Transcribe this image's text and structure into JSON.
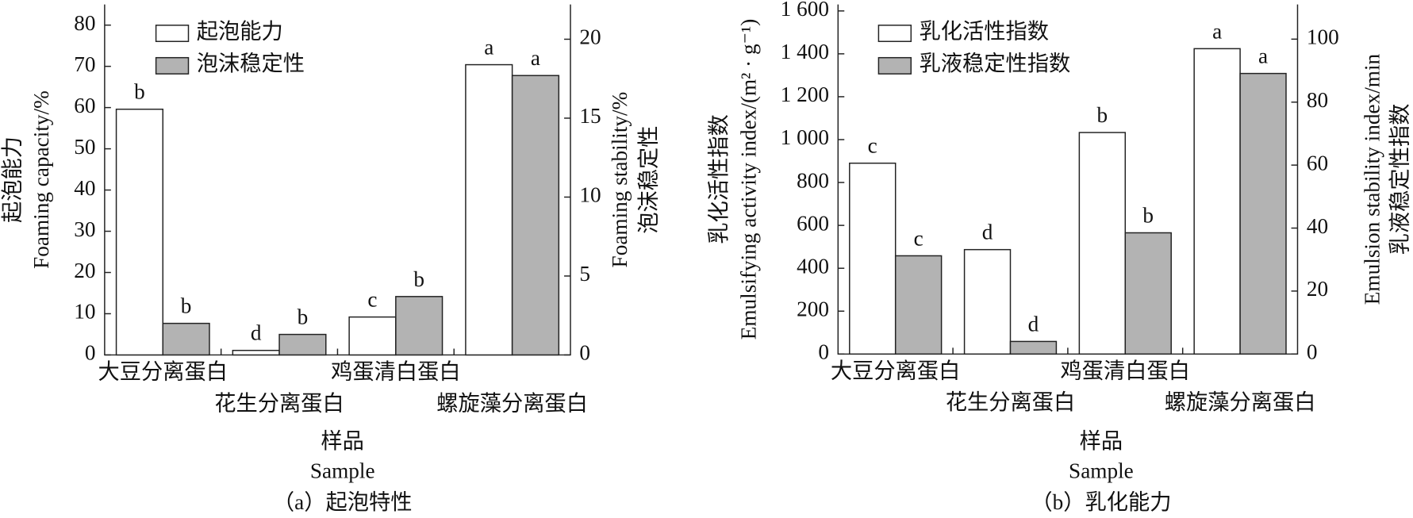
{
  "chart_data": [
    {
      "type": "bar",
      "caption": "（a）起泡特性",
      "xlabel": "样品",
      "xlabel_en": "Sample",
      "ylabel": [
        "起泡能力",
        "Foaming capacity/%"
      ],
      "y2label": [
        "Foaming stability/%",
        "泡沫稳定性"
      ],
      "categories": [
        "大豆分离蛋白",
        "花生分离蛋白",
        "鸡蛋清白蛋白",
        "螺旋藻分离蛋白"
      ],
      "series": [
        {
          "name": "起泡能力",
          "color": "#ffffff",
          "axis": "y",
          "values": [
            59.6,
            1.1,
            9.2,
            70.4
          ],
          "significance": [
            "b",
            "d",
            "c",
            "a"
          ]
        },
        {
          "name": "泡沫稳定性",
          "color": "#b3b3b3",
          "axis": "y2",
          "values": [
            2.0,
            1.3,
            3.7,
            17.7
          ],
          "significance": [
            "b",
            "b",
            "b",
            "a"
          ]
        }
      ],
      "ylim": [
        0,
        85
      ],
      "yticks": [
        0,
        10,
        20,
        30,
        40,
        50,
        60,
        70,
        80
      ],
      "y2lim": [
        0,
        22.2
      ],
      "y2ticks": [
        0,
        5,
        10,
        15,
        20
      ],
      "legend": "upper left"
    },
    {
      "type": "bar",
      "caption": "（b）乳化能力",
      "xlabel": "样品",
      "xlabel_en": "Sample",
      "ylabel": [
        "乳化活性指数",
        "Emulsifying activity index/(m² · g⁻¹)"
      ],
      "y2label": [
        "Emulsion stability index/min",
        "乳液稳定性指数"
      ],
      "categories": [
        "大豆分离蛋白",
        "花生分离蛋白",
        "鸡蛋清白蛋白",
        "螺旋藻分离蛋白"
      ],
      "series": [
        {
          "name": "乳化活性指数",
          "color": "#ffffff",
          "axis": "y",
          "values": [
            890,
            487,
            1033,
            1424
          ],
          "significance": [
            "c",
            "d",
            "b",
            "a"
          ]
        },
        {
          "name": "乳液稳定性指数",
          "color": "#b3b3b3",
          "axis": "y2",
          "values": [
            31.2,
            4.0,
            38.5,
            89.1
          ],
          "significance": [
            "c",
            "d",
            "b",
            "a"
          ]
        }
      ],
      "ylim": [
        0,
        1630
      ],
      "yticks": [
        0,
        200,
        400,
        600,
        800,
        {
          "value": 1000,
          "label": "1 000"
        },
        {
          "value": 1200,
          "label": "1 200"
        },
        {
          "value": 1400,
          "label": "1 400"
        },
        {
          "value": 1600,
          "label": "1 600"
        }
      ],
      "y2lim": [
        0,
        111
      ],
      "y2ticks": [
        0,
        20,
        40,
        60,
        80,
        100
      ],
      "legend": "upper left"
    }
  ]
}
